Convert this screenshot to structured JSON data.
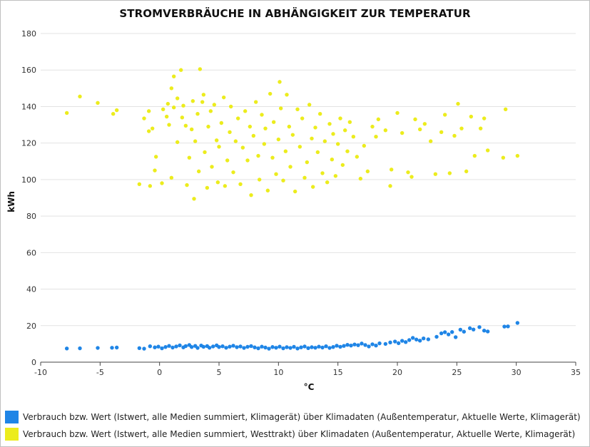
{
  "chart_data": {
    "type": "scatter",
    "title": "STROMVERBRÄUCHE IN ABHÄNGIGKEIT ZUR TEMPERATUR",
    "xlabel": "°C",
    "ylabel": "kWh",
    "xlim": [
      -10,
      35
    ],
    "ylim": [
      0,
      180
    ],
    "xticks": [
      -10,
      -5,
      0,
      5,
      10,
      15,
      20,
      25,
      30,
      35
    ],
    "yticks": [
      0,
      20,
      40,
      60,
      80,
      100,
      120,
      140,
      160,
      180
    ],
    "grid": true,
    "legend_position": "bottom",
    "series": [
      {
        "name": "Verbrauch bzw. Wert (Istwert, alle Medien summiert, Klimagerät) über Klimadaten (Außentemperatur, Aktuelle Werte, Klimagerät)",
        "color": "#1f85e6",
        "points": [
          [
            -7.8,
            7.5
          ],
          [
            -6.7,
            7.6
          ],
          [
            -5.2,
            7.8
          ],
          [
            -4.0,
            7.9
          ],
          [
            -3.6,
            8.0
          ],
          [
            -1.7,
            7.7
          ],
          [
            -1.3,
            7.4
          ],
          [
            -0.8,
            8.7
          ],
          [
            -0.4,
            8.1
          ],
          [
            -0.1,
            8.5
          ],
          [
            0.2,
            7.6
          ],
          [
            0.5,
            8.3
          ],
          [
            0.8,
            8.9
          ],
          [
            1.1,
            8.0
          ],
          [
            1.4,
            8.6
          ],
          [
            1.7,
            9.2
          ],
          [
            2.0,
            8.1
          ],
          [
            2.2,
            8.8
          ],
          [
            2.5,
            9.4
          ],
          [
            2.7,
            8.3
          ],
          [
            3.0,
            8.9
          ],
          [
            3.2,
            7.8
          ],
          [
            3.5,
            9.1
          ],
          [
            3.7,
            8.4
          ],
          [
            4.0,
            8.8
          ],
          [
            4.2,
            7.9
          ],
          [
            4.5,
            8.6
          ],
          [
            4.8,
            9.2
          ],
          [
            5.0,
            8.3
          ],
          [
            5.3,
            8.7
          ],
          [
            5.6,
            7.9
          ],
          [
            5.9,
            8.5
          ],
          [
            6.2,
            9.0
          ],
          [
            6.5,
            8.2
          ],
          [
            6.8,
            8.6
          ],
          [
            7.1,
            7.8
          ],
          [
            7.4,
            8.4
          ],
          [
            7.7,
            8.8
          ],
          [
            8.0,
            8.1
          ],
          [
            8.3,
            7.6
          ],
          [
            8.6,
            8.5
          ],
          [
            8.9,
            8.0
          ],
          [
            9.2,
            7.4
          ],
          [
            9.5,
            8.3
          ],
          [
            9.8,
            7.9
          ],
          [
            10.1,
            8.5
          ],
          [
            10.4,
            7.6
          ],
          [
            10.7,
            8.2
          ],
          [
            11.0,
            7.8
          ],
          [
            11.3,
            8.4
          ],
          [
            11.6,
            7.5
          ],
          [
            11.9,
            8.1
          ],
          [
            12.2,
            8.6
          ],
          [
            12.5,
            7.7
          ],
          [
            12.8,
            8.2
          ],
          [
            13.1,
            7.9
          ],
          [
            13.4,
            8.5
          ],
          [
            13.7,
            8.0
          ],
          [
            14.0,
            8.7
          ],
          [
            14.3,
            7.8
          ],
          [
            14.6,
            8.3
          ],
          [
            14.9,
            9.0
          ],
          [
            15.2,
            8.4
          ],
          [
            15.5,
            8.9
          ],
          [
            15.8,
            9.5
          ],
          [
            16.1,
            9.1
          ],
          [
            16.4,
            9.7
          ],
          [
            16.7,
            9.3
          ],
          [
            17.0,
            10.2
          ],
          [
            17.3,
            9.4
          ],
          [
            17.6,
            8.6
          ],
          [
            17.9,
            9.8
          ],
          [
            18.2,
            9.1
          ],
          [
            18.5,
            10.3
          ],
          [
            19.0,
            10.0
          ],
          [
            19.4,
            10.8
          ],
          [
            19.8,
            11.3
          ],
          [
            20.1,
            10.4
          ],
          [
            20.4,
            11.7
          ],
          [
            20.7,
            11.0
          ],
          [
            21.0,
            12.1
          ],
          [
            21.3,
            13.3
          ],
          [
            21.6,
            12.4
          ],
          [
            21.9,
            11.8
          ],
          [
            22.2,
            13.0
          ],
          [
            22.6,
            12.5
          ],
          [
            23.3,
            13.9
          ],
          [
            23.7,
            15.8
          ],
          [
            24.0,
            16.4
          ],
          [
            24.3,
            15.2
          ],
          [
            24.6,
            16.5
          ],
          [
            24.9,
            13.7
          ],
          [
            25.3,
            17.8
          ],
          [
            25.6,
            16.7
          ],
          [
            26.1,
            18.6
          ],
          [
            26.4,
            17.9
          ],
          [
            26.9,
            19.2
          ],
          [
            27.3,
            17.3
          ],
          [
            27.6,
            16.8
          ],
          [
            29.0,
            19.5
          ],
          [
            29.3,
            19.6
          ],
          [
            30.1,
            21.5
          ]
        ]
      },
      {
        "name": "Verbrauch bzw. Wert (Istwert, alle Medien summiert, Westtrakt) über Klimadaten (Außentemperatur, Aktuelle Werte, Klimagerät)",
        "color": "#ecec1d",
        "points": [
          [
            -7.8,
            136.5
          ],
          [
            -6.7,
            145.5
          ],
          [
            -5.2,
            142.0
          ],
          [
            -3.9,
            136.0
          ],
          [
            -3.6,
            138.0
          ],
          [
            -1.7,
            97.5
          ],
          [
            -1.3,
            133.5
          ],
          [
            -0.9,
            126.5
          ],
          [
            -0.9,
            137.5
          ],
          [
            -0.8,
            96.5
          ],
          [
            -0.6,
            128.0
          ],
          [
            -0.4,
            105.0
          ],
          [
            -0.3,
            112.5
          ],
          [
            0.2,
            98.0
          ],
          [
            0.3,
            138.5
          ],
          [
            0.6,
            134.5
          ],
          [
            0.7,
            141.5
          ],
          [
            0.8,
            130.0
          ],
          [
            1.0,
            101.0
          ],
          [
            1.0,
            150.0
          ],
          [
            1.2,
            139.5
          ],
          [
            1.2,
            156.5
          ],
          [
            1.5,
            120.5
          ],
          [
            1.5,
            144.5
          ],
          [
            1.8,
            160.0
          ],
          [
            1.9,
            134.0
          ],
          [
            2.0,
            140.5
          ],
          [
            2.2,
            129.5
          ],
          [
            2.3,
            97.0
          ],
          [
            2.5,
            112.0
          ],
          [
            2.7,
            127.5
          ],
          [
            2.8,
            143.0
          ],
          [
            2.9,
            89.5
          ],
          [
            3.0,
            121.0
          ],
          [
            3.2,
            136.0
          ],
          [
            3.3,
            104.5
          ],
          [
            3.4,
            160.5
          ],
          [
            3.6,
            142.5
          ],
          [
            3.7,
            146.5
          ],
          [
            3.8,
            115.0
          ],
          [
            4.0,
            95.5
          ],
          [
            4.1,
            129.0
          ],
          [
            4.3,
            137.5
          ],
          [
            4.4,
            107.0
          ],
          [
            4.6,
            141.0
          ],
          [
            4.8,
            121.5
          ],
          [
            4.9,
            98.5
          ],
          [
            5.0,
            118.0
          ],
          [
            5.2,
            131.0
          ],
          [
            5.4,
            145.0
          ],
          [
            5.5,
            96.5
          ],
          [
            5.7,
            110.5
          ],
          [
            5.9,
            126.0
          ],
          [
            6.0,
            140.0
          ],
          [
            6.2,
            104.0
          ],
          [
            6.4,
            121.0
          ],
          [
            6.6,
            133.5
          ],
          [
            6.8,
            97.5
          ],
          [
            7.0,
            117.5
          ],
          [
            7.2,
            137.5
          ],
          [
            7.4,
            110.5
          ],
          [
            7.6,
            129.0
          ],
          [
            7.7,
            91.5
          ],
          [
            7.9,
            124.0
          ],
          [
            8.1,
            142.5
          ],
          [
            8.3,
            113.0
          ],
          [
            8.4,
            100.0
          ],
          [
            8.6,
            135.5
          ],
          [
            8.8,
            119.5
          ],
          [
            8.9,
            128.0
          ],
          [
            9.1,
            94.0
          ],
          [
            9.3,
            147.0
          ],
          [
            9.5,
            112.0
          ],
          [
            9.6,
            131.5
          ],
          [
            9.8,
            103.0
          ],
          [
            10.0,
            122.0
          ],
          [
            10.1,
            153.5
          ],
          [
            10.2,
            139.0
          ],
          [
            10.4,
            99.5
          ],
          [
            10.6,
            115.5
          ],
          [
            10.7,
            146.5
          ],
          [
            10.9,
            129.0
          ],
          [
            11.0,
            107.0
          ],
          [
            11.2,
            124.5
          ],
          [
            11.4,
            93.5
          ],
          [
            11.6,
            138.5
          ],
          [
            11.8,
            118.0
          ],
          [
            12.0,
            133.5
          ],
          [
            12.2,
            101.0
          ],
          [
            12.4,
            109.5
          ],
          [
            12.6,
            141.0
          ],
          [
            12.8,
            122.5
          ],
          [
            12.9,
            96.0
          ],
          [
            13.1,
            128.5
          ],
          [
            13.3,
            115.0
          ],
          [
            13.5,
            136.0
          ],
          [
            13.7,
            103.5
          ],
          [
            13.9,
            121.0
          ],
          [
            14.1,
            98.5
          ],
          [
            14.3,
            130.5
          ],
          [
            14.5,
            111.0
          ],
          [
            14.6,
            125.0
          ],
          [
            14.8,
            102.0
          ],
          [
            15.0,
            119.5
          ],
          [
            15.2,
            133.5
          ],
          [
            15.4,
            108.0
          ],
          [
            15.6,
            127.0
          ],
          [
            15.8,
            115.5
          ],
          [
            16.0,
            131.5
          ],
          [
            16.3,
            123.5
          ],
          [
            16.6,
            112.5
          ],
          [
            16.9,
            100.5
          ],
          [
            17.2,
            118.5
          ],
          [
            17.5,
            104.5
          ],
          [
            17.9,
            129.0
          ],
          [
            18.2,
            123.5
          ],
          [
            18.4,
            133.0
          ],
          [
            19.0,
            127.0
          ],
          [
            19.4,
            96.5
          ],
          [
            19.5,
            105.5
          ],
          [
            20.0,
            136.5
          ],
          [
            20.4,
            125.5
          ],
          [
            20.9,
            104.0
          ],
          [
            21.2,
            101.5
          ],
          [
            21.5,
            133.0
          ],
          [
            21.9,
            127.5
          ],
          [
            22.3,
            130.5
          ],
          [
            22.8,
            121.0
          ],
          [
            23.2,
            103.0
          ],
          [
            23.7,
            126.0
          ],
          [
            24.0,
            135.5
          ],
          [
            24.4,
            103.5
          ],
          [
            24.8,
            124.0
          ],
          [
            25.1,
            141.5
          ],
          [
            25.4,
            128.0
          ],
          [
            25.8,
            104.5
          ],
          [
            26.2,
            134.5
          ],
          [
            26.5,
            113.0
          ],
          [
            27.0,
            128.0
          ],
          [
            27.3,
            133.5
          ],
          [
            27.6,
            116.0
          ],
          [
            28.9,
            112.0
          ],
          [
            29.1,
            138.5
          ],
          [
            30.1,
            113.0
          ]
        ]
      }
    ]
  }
}
